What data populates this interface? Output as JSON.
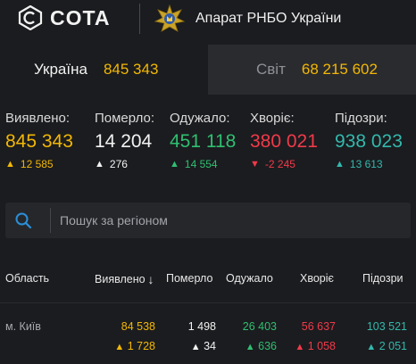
{
  "header": {
    "brand": "COTA",
    "org": "Апарат РНБО України"
  },
  "tabs": [
    {
      "label": "Україна",
      "value": "845 343",
      "active": true
    },
    {
      "label": "Світ",
      "value": "68 215 602",
      "active": false
    }
  ],
  "stats": [
    {
      "label": "Виявлено:",
      "value": "845 343",
      "delta": "12 585",
      "direction": "up",
      "color": "#f2b705"
    },
    {
      "label": "Померло:",
      "value": "14 204",
      "delta": "276",
      "direction": "up",
      "color": "#f2f2f2"
    },
    {
      "label": "Одужало:",
      "value": "451 118",
      "delta": "14 554",
      "direction": "up",
      "color": "#2fbf71"
    },
    {
      "label": "Хворіє:",
      "value": "380 021",
      "delta": "-2 245",
      "direction": "down",
      "color": "#f03a4a"
    },
    {
      "label": "Підозри:",
      "value": "938 023",
      "delta": "13 613",
      "direction": "up",
      "color": "#33b8ad"
    }
  ],
  "search": {
    "placeholder": "Пошук за регіоном",
    "value": ""
  },
  "table": {
    "columns": [
      "Область",
      "Виявлено",
      "Померло",
      "Одужало",
      "Хворіє",
      "Підозри"
    ],
    "sort_indicator": "↓",
    "rows": [
      {
        "region": "м. Київ",
        "detected": "84 538",
        "detected_delta": "1 728",
        "deaths": "1 498",
        "deaths_delta": "34",
        "recovered": "26 403",
        "recovered_delta": "636",
        "sick": "56 637",
        "sick_delta": "1 058",
        "suspected": "103 521",
        "suspected_delta": "2 051"
      }
    ]
  },
  "colors": {
    "background": "#1b1c1f",
    "yellow": "#f2b705",
    "white": "#f2f2f2",
    "green": "#2fbf71",
    "red": "#f03a4a",
    "teal": "#33b8ad",
    "search_accent": "#2a8fd8"
  },
  "icons": {
    "brand_logo": "cota-logo-icon",
    "emblem": "rnbo-emblem-icon",
    "search": "search-icon",
    "up": "arrow-up-icon",
    "down": "arrow-down-icon"
  }
}
